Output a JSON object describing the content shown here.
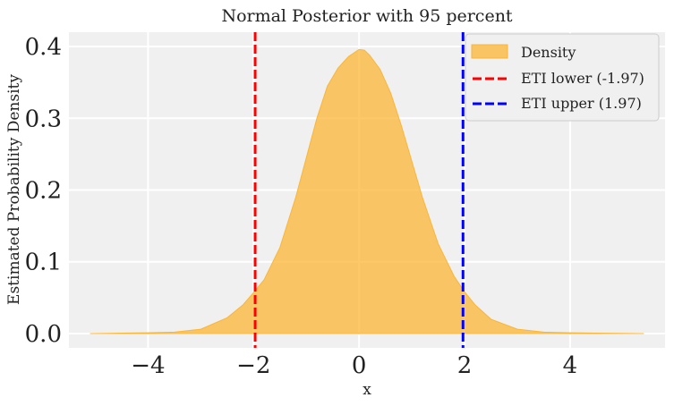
{
  "chart_data": {
    "type": "area",
    "title": "Normal Posterior with 95 percent",
    "xlabel": "x",
    "ylabel": "Estimated Probability Density",
    "xlim": [
      -5.5,
      5.8
    ],
    "ylim": [
      -0.02,
      0.42
    ],
    "xticks": [
      -4,
      -2,
      0,
      2,
      4
    ],
    "yticks": [
      0.0,
      0.1,
      0.2,
      0.3,
      0.4
    ],
    "xtick_labels": [
      "−4",
      "−2",
      "0",
      "2",
      "4"
    ],
    "ytick_labels": [
      "0.0",
      "0.1",
      "0.2",
      "0.3",
      "0.4"
    ],
    "grid": true,
    "legend_position": "top-right",
    "series": [
      {
        "name": "Density",
        "kind": "area",
        "color": "#fbb636",
        "x": [
          -5.1,
          -4.5,
          -4.0,
          -3.5,
          -3.0,
          -2.5,
          -2.2,
          -2.0,
          -1.8,
          -1.5,
          -1.2,
          -1.0,
          -0.8,
          -0.6,
          -0.4,
          -0.2,
          0.0,
          0.1,
          0.2,
          0.4,
          0.6,
          0.8,
          1.0,
          1.2,
          1.5,
          1.8,
          2.0,
          2.2,
          2.5,
          3.0,
          3.5,
          4.0,
          4.5,
          5.0,
          5.4
        ],
        "y": [
          0.0,
          0.0005,
          0.001,
          0.002,
          0.006,
          0.022,
          0.04,
          0.057,
          0.075,
          0.12,
          0.19,
          0.245,
          0.3,
          0.345,
          0.37,
          0.386,
          0.396,
          0.395,
          0.388,
          0.368,
          0.335,
          0.29,
          0.24,
          0.19,
          0.125,
          0.08,
          0.058,
          0.04,
          0.02,
          0.006,
          0.002,
          0.001,
          0.0005,
          0.0002,
          0.0
        ]
      },
      {
        "name": "ETI lower (-1.97)",
        "kind": "vline",
        "x": -1.97,
        "color": "#ff0000"
      },
      {
        "name": "ETI upper (1.97)",
        "kind": "vline",
        "x": 1.97,
        "color": "#0000ff"
      }
    ]
  }
}
